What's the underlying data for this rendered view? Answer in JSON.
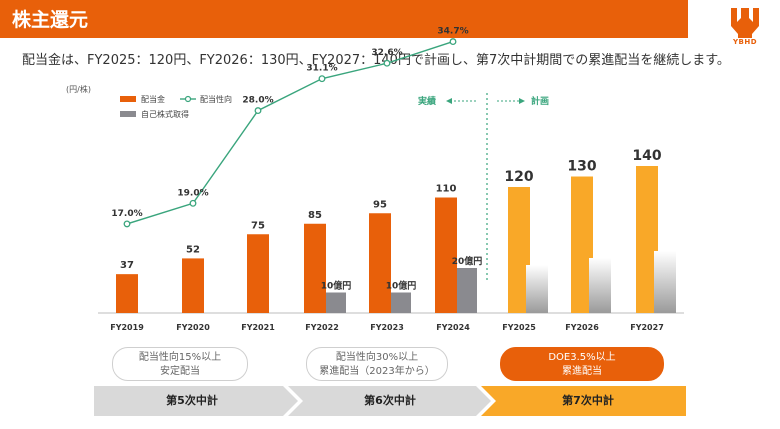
{
  "header": {
    "title": "株主還元",
    "logo_text": "YBHD"
  },
  "subtitle": "配当金は、FY2025：120円、FY2026：130円、FY2027：140円で計画し、第7次中計期間での累進配当を継続します。",
  "colors": {
    "accent": "#e8600a",
    "plan": "#f9a828",
    "buyback": "#8a8a8f",
    "line": "#3aa57d"
  },
  "chart_data": {
    "type": "bar",
    "unit_label": "(円/株)",
    "categories": [
      "FY2019",
      "FY2020",
      "FY2021",
      "FY2022",
      "FY2023",
      "FY2024",
      "FY2025",
      "FY2026",
      "FY2027"
    ],
    "series": [
      {
        "name": "配当金",
        "values": [
          37,
          52,
          75,
          85,
          95,
          110,
          120,
          130,
          140
        ]
      },
      {
        "name": "自己株式取得",
        "values": [
          null,
          null,
          null,
          "10億円",
          "10億円",
          "20億円",
          null,
          null,
          null
        ]
      },
      {
        "name": "配当性向",
        "values": [
          "17.0%",
          "19.0%",
          "28.0%",
          "31.1%",
          "32.6%",
          "34.7%",
          null,
          null,
          null
        ]
      }
    ],
    "payout_ratio": [
      17.0,
      19.0,
      28.0,
      31.1,
      32.6,
      34.7
    ],
    "buyback_oku_yen": [
      null,
      null,
      null,
      10,
      10,
      20,
      null,
      null,
      null
    ],
    "actual_label": "実績",
    "plan_label": "計画",
    "legend_placement": "top-left"
  },
  "pills": [
    {
      "line1": "配当性向15%以上",
      "line2": "安定配当"
    },
    {
      "line1": "配当性向30%以上",
      "line2": "累進配当（2023年から）"
    },
    {
      "line1": "DOE3.5%以上",
      "line2": "累進配当"
    }
  ],
  "phases": [
    "第5次中計",
    "第6次中計",
    "第7次中計"
  ]
}
